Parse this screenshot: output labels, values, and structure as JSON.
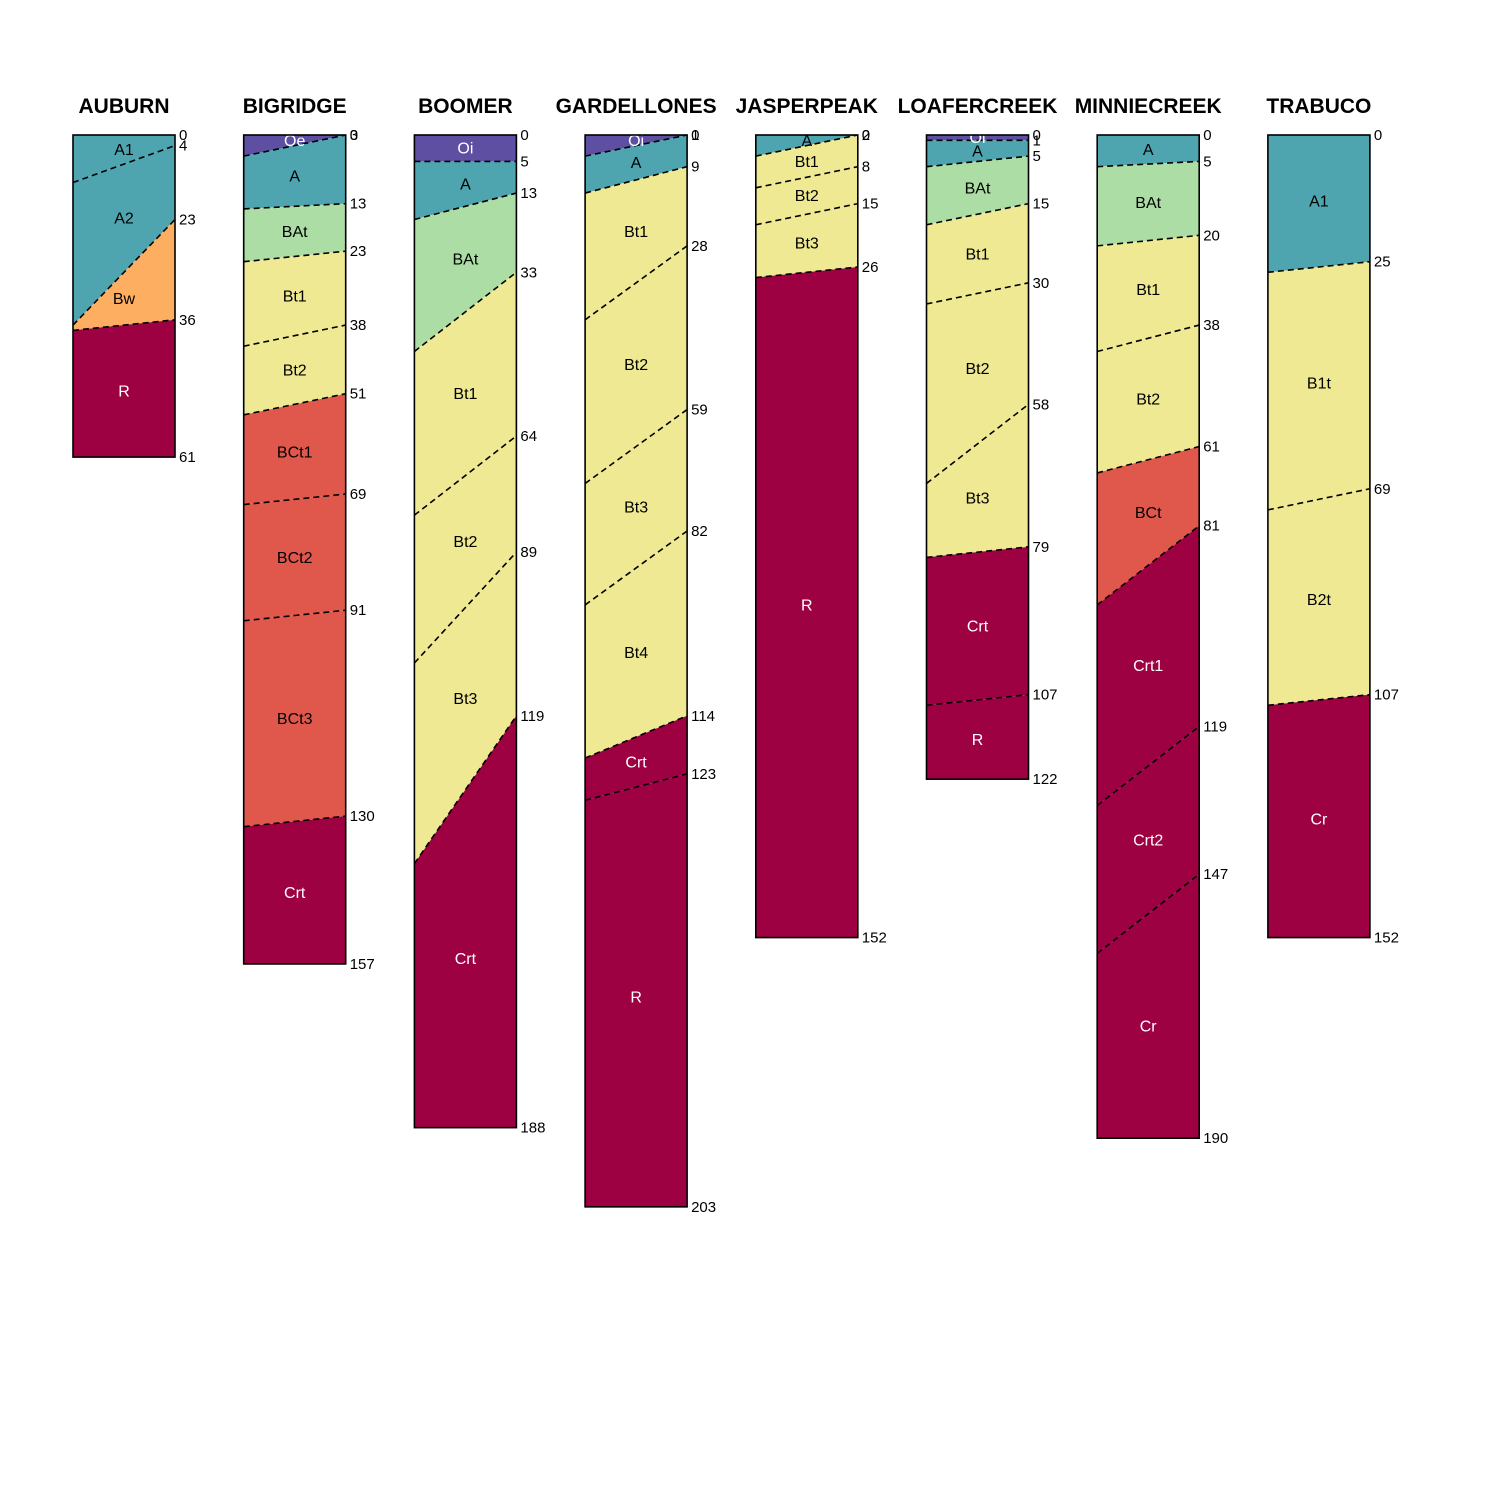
{
  "colors": {
    "O": "#5e4fa2",
    "A": "#4ea5b0",
    "Bw": "#fdae61",
    "BAt": "#abdda4",
    "Bt": "#eee992",
    "BCt": "#e0574c",
    "Crt": "#9e0142",
    "outline": "#000000"
  },
  "profiles": [
    {
      "name": "AUBURN",
      "bottom": 61,
      "boundaries": [
        {
          "depth": 4,
          "left": 9,
          "right": 2
        },
        {
          "depth": 23,
          "left": 36,
          "right": 16
        },
        {
          "depth": 36,
          "left": 37,
          "right": 35
        }
      ],
      "horizons": [
        {
          "name": "A1",
          "color": "#4ea5b0",
          "text_color": "#000000"
        },
        {
          "name": "A2",
          "color": "#4ea5b0",
          "text_color": "#000000"
        },
        {
          "name": "Bw",
          "color": "#fdae61",
          "text_color": "#000000"
        },
        {
          "name": "R",
          "color": "#9e0142",
          "text_color": "#ffffff"
        }
      ]
    },
    {
      "name": "BIGRIDGE",
      "bottom": 157,
      "boundaries": [
        {
          "depth": 3,
          "left": 4,
          "right": 0
        },
        {
          "depth": 13,
          "left": 14,
          "right": 13
        },
        {
          "depth": 23,
          "left": 24,
          "right": 22
        },
        {
          "depth": 38,
          "left": 40,
          "right": 36
        },
        {
          "depth": 51,
          "left": 53,
          "right": 49
        },
        {
          "depth": 69,
          "left": 70,
          "right": 68
        },
        {
          "depth": 91,
          "left": 92,
          "right": 90
        },
        {
          "depth": 130,
          "left": 131,
          "right": 129
        }
      ],
      "horizons": [
        {
          "name": "Oe",
          "color": "#5e4fa2",
          "text_color": "#ffffff"
        },
        {
          "name": "A",
          "color": "#4ea5b0",
          "text_color": "#000000"
        },
        {
          "name": "BAt",
          "color": "#abdda4",
          "text_color": "#000000"
        },
        {
          "name": "Bt1",
          "color": "#eee992",
          "text_color": "#000000"
        },
        {
          "name": "Bt2",
          "color": "#eee992",
          "text_color": "#000000"
        },
        {
          "name": "BCt1",
          "color": "#e0574c",
          "text_color": "#000000"
        },
        {
          "name": "BCt2",
          "color": "#e0574c",
          "text_color": "#000000"
        },
        {
          "name": "BCt3",
          "color": "#e0574c",
          "text_color": "#000000"
        },
        {
          "name": "Crt",
          "color": "#9e0142",
          "text_color": "#ffffff"
        }
      ]
    },
    {
      "name": "BOOMER",
      "bottom": 188,
      "boundaries": [
        {
          "depth": 5,
          "left": 5,
          "right": 5
        },
        {
          "depth": 13,
          "left": 16,
          "right": 11
        },
        {
          "depth": 33,
          "left": 41,
          "right": 26
        },
        {
          "depth": 64,
          "left": 72,
          "right": 57
        },
        {
          "depth": 89,
          "left": 100,
          "right": 79
        },
        {
          "depth": 119,
          "left": 138,
          "right": 110
        }
      ],
      "horizons": [
        {
          "name": "Oi",
          "color": "#5e4fa2",
          "text_color": "#ffffff"
        },
        {
          "name": "A",
          "color": "#4ea5b0",
          "text_color": "#000000"
        },
        {
          "name": "BAt",
          "color": "#abdda4",
          "text_color": "#000000"
        },
        {
          "name": "Bt1",
          "color": "#eee992",
          "text_color": "#000000"
        },
        {
          "name": "Bt2",
          "color": "#eee992",
          "text_color": "#000000"
        },
        {
          "name": "Bt3",
          "color": "#eee992",
          "text_color": "#000000"
        },
        {
          "name": "Crt",
          "color": "#9e0142",
          "text_color": "#ffffff"
        }
      ]
    },
    {
      "name": "GARDELLONES",
      "bottom": 203,
      "boundaries": [
        {
          "depth": 1,
          "left": 4,
          "right": 0
        },
        {
          "depth": 9,
          "left": 11,
          "right": 6
        },
        {
          "depth": 28,
          "left": 35,
          "right": 21
        },
        {
          "depth": 59,
          "left": 66,
          "right": 52
        },
        {
          "depth": 82,
          "left": 89,
          "right": 75
        },
        {
          "depth": 114,
          "left": 118,
          "right": 110
        },
        {
          "depth": 123,
          "left": 126,
          "right": 121
        }
      ],
      "horizons": [
        {
          "name": "Oi",
          "color": "#5e4fa2",
          "text_color": "#ffffff"
        },
        {
          "name": "A",
          "color": "#4ea5b0",
          "text_color": "#000000"
        },
        {
          "name": "Bt1",
          "color": "#eee992",
          "text_color": "#000000"
        },
        {
          "name": "Bt2",
          "color": "#eee992",
          "text_color": "#000000"
        },
        {
          "name": "Bt3",
          "color": "#eee992",
          "text_color": "#000000"
        },
        {
          "name": "Bt4",
          "color": "#eee992",
          "text_color": "#000000"
        },
        {
          "name": "Crt",
          "color": "#9e0142",
          "text_color": "#ffffff"
        },
        {
          "name": "R",
          "color": "#9e0142",
          "text_color": "#ffffff"
        }
      ]
    },
    {
      "name": "JASPERPEAK",
      "bottom": 152,
      "boundaries": [
        {
          "depth": 2,
          "left": 4,
          "right": 0
        },
        {
          "depth": 8,
          "left": 10,
          "right": 6
        },
        {
          "depth": 15,
          "left": 17,
          "right": 13
        },
        {
          "depth": 26,
          "left": 27,
          "right": 25
        }
      ],
      "horizons": [
        {
          "name": "A",
          "color": "#4ea5b0",
          "text_color": "#000000"
        },
        {
          "name": "Bt1",
          "color": "#eee992",
          "text_color": "#000000"
        },
        {
          "name": "Bt2",
          "color": "#eee992",
          "text_color": "#000000"
        },
        {
          "name": "Bt3",
          "color": "#eee992",
          "text_color": "#000000"
        },
        {
          "name": "R",
          "color": "#9e0142",
          "text_color": "#ffffff"
        }
      ]
    },
    {
      "name": "LOAFERCREEK",
      "bottom": 122,
      "boundaries": [
        {
          "depth": 1,
          "left": 1,
          "right": 1
        },
        {
          "depth": 5,
          "left": 6,
          "right": 4
        },
        {
          "depth": 15,
          "left": 17,
          "right": 13
        },
        {
          "depth": 30,
          "left": 32,
          "right": 28
        },
        {
          "depth": 58,
          "left": 66,
          "right": 51
        },
        {
          "depth": 79,
          "left": 80,
          "right": 78
        },
        {
          "depth": 107,
          "left": 108,
          "right": 106
        }
      ],
      "horizons": [
        {
          "name": "Oi",
          "color": "#5e4fa2",
          "text_color": "#ffffff"
        },
        {
          "name": "A",
          "color": "#4ea5b0",
          "text_color": "#000000"
        },
        {
          "name": "BAt",
          "color": "#abdda4",
          "text_color": "#000000"
        },
        {
          "name": "Bt1",
          "color": "#eee992",
          "text_color": "#000000"
        },
        {
          "name": "Bt2",
          "color": "#eee992",
          "text_color": "#000000"
        },
        {
          "name": "Bt3",
          "color": "#eee992",
          "text_color": "#000000"
        },
        {
          "name": "Crt",
          "color": "#9e0142",
          "text_color": "#ffffff"
        },
        {
          "name": "R",
          "color": "#9e0142",
          "text_color": "#ffffff"
        }
      ]
    },
    {
      "name": "MINNIECREEK",
      "bottom": 190,
      "boundaries": [
        {
          "depth": 5,
          "left": 6,
          "right": 5
        },
        {
          "depth": 20,
          "left": 21,
          "right": 19
        },
        {
          "depth": 38,
          "left": 41,
          "right": 36
        },
        {
          "depth": 61,
          "left": 64,
          "right": 59
        },
        {
          "depth": 81,
          "left": 89,
          "right": 74
        },
        {
          "depth": 119,
          "left": 127,
          "right": 112
        },
        {
          "depth": 147,
          "left": 155,
          "right": 140
        }
      ],
      "horizons": [
        {
          "name": "A",
          "color": "#4ea5b0",
          "text_color": "#000000"
        },
        {
          "name": "BAt",
          "color": "#abdda4",
          "text_color": "#000000"
        },
        {
          "name": "Bt1",
          "color": "#eee992",
          "text_color": "#000000"
        },
        {
          "name": "Bt2",
          "color": "#eee992",
          "text_color": "#000000"
        },
        {
          "name": "BCt",
          "color": "#e0574c",
          "text_color": "#000000"
        },
        {
          "name": "Crt1",
          "color": "#9e0142",
          "text_color": "#ffffff"
        },
        {
          "name": "Crt2",
          "color": "#9e0142",
          "text_color": "#ffffff"
        },
        {
          "name": "Cr",
          "color": "#9e0142",
          "text_color": "#ffffff"
        }
      ]
    },
    {
      "name": "TRABUCO",
      "bottom": 152,
      "boundaries": [
        {
          "depth": 25,
          "left": 26,
          "right": 24
        },
        {
          "depth": 69,
          "left": 71,
          "right": 67
        },
        {
          "depth": 107,
          "left": 108,
          "right": 106
        }
      ],
      "horizons": [
        {
          "name": "A1",
          "color": "#4ea5b0",
          "text_color": "#000000"
        },
        {
          "name": "B1t",
          "color": "#eee992",
          "text_color": "#000000"
        },
        {
          "name": "B2t",
          "color": "#eee992",
          "text_color": "#000000"
        },
        {
          "name": "Cr",
          "color": "#9e0142",
          "text_color": "#ffffff"
        }
      ]
    }
  ]
}
